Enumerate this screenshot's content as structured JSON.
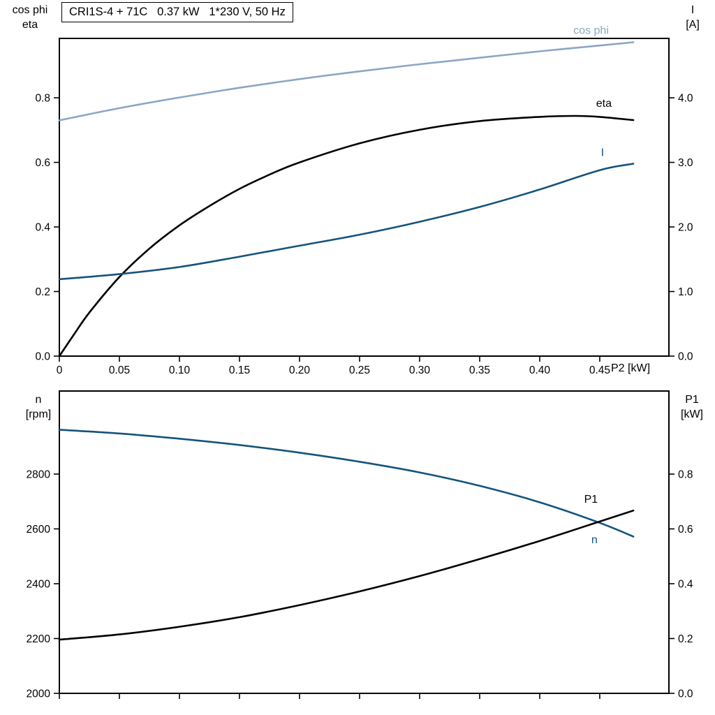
{
  "page": {
    "background": "#ffffff"
  },
  "header": {
    "title_box": "CRI1S-4 + 71C   0.37 kW   1*230 V, 50 Hz"
  },
  "colors": {
    "axis": "#000000",
    "cos_phi": "#8ba6c5",
    "current": "#14537d",
    "eta": "#000000",
    "speed": "#14537d",
    "p1": "#000000"
  },
  "chart_data": [
    {
      "type": "line",
      "id": "motor-efficiency-chart",
      "x_axis": {
        "label": "P2 [kW]",
        "range": [
          0,
          0.5076
        ],
        "tick_values": [
          0,
          0.05,
          0.1,
          0.15,
          0.2,
          0.25,
          0.3,
          0.35,
          0.4,
          0.45
        ],
        "tick_labels": [
          "0",
          "0.05",
          "0.10",
          "0.15",
          "0.20",
          "0.25",
          "0.30",
          "0.35",
          "0.40",
          "0.45"
        ],
        "show_tick_labels": true
      },
      "left_axis": {
        "title_lines": [
          "cos phi",
          "eta"
        ],
        "range": [
          0,
          0.984
        ],
        "tick_values": [
          0,
          0.2,
          0.4,
          0.6,
          0.8
        ],
        "tick_labels": [
          "0.0",
          "0.2",
          "0.4",
          "0.6",
          "0.8"
        ]
      },
      "right_axis": {
        "title_lines": [
          "I",
          "[A]"
        ],
        "range": [
          0,
          4.92
        ],
        "tick_values": [
          0,
          1,
          2,
          3,
          4
        ],
        "tick_labels": [
          "0.0",
          "1.0",
          "2.0",
          "3.0",
          "4.0"
        ]
      },
      "legend_position": "end-of-line-labels",
      "grid": false,
      "series": [
        {
          "name": "cos phi",
          "axis": "left",
          "color": "#8ba6c5",
          "label": {
            "text": "cos phi",
            "x": 0.428,
            "y": 0.998,
            "anchor": "start"
          },
          "points": [
            [
              0,
              0.73
            ],
            [
              0.05,
              0.768
            ],
            [
              0.1,
              0.801
            ],
            [
              0.15,
              0.831
            ],
            [
              0.2,
              0.858
            ],
            [
              0.25,
              0.882
            ],
            [
              0.3,
              0.904
            ],
            [
              0.35,
              0.924
            ],
            [
              0.4,
              0.944
            ],
            [
              0.45,
              0.962
            ],
            [
              0.478,
              0.972
            ]
          ]
        },
        {
          "name": "eta",
          "axis": "left",
          "color": "#000000",
          "label": {
            "text": "eta",
            "x": 0.447,
            "y": 0.772,
            "anchor": "start"
          },
          "points": [
            [
              0,
              0
            ],
            [
              0.012,
              0.066
            ],
            [
              0.025,
              0.135
            ],
            [
              0.05,
              0.245
            ],
            [
              0.075,
              0.333
            ],
            [
              0.1,
              0.405
            ],
            [
              0.125,
              0.465
            ],
            [
              0.15,
              0.518
            ],
            [
              0.175,
              0.562
            ],
            [
              0.2,
              0.6
            ],
            [
              0.25,
              0.659
            ],
            [
              0.3,
              0.701
            ],
            [
              0.35,
              0.728
            ],
            [
              0.4,
              0.741
            ],
            [
              0.43,
              0.744
            ],
            [
              0.45,
              0.741
            ],
            [
              0.478,
              0.731
            ]
          ]
        },
        {
          "name": "I",
          "axis": "right",
          "color": "#14537d",
          "label": {
            "text": "I",
            "x": 0.451,
            "y": 3.1,
            "anchor": "start"
          },
          "points": [
            [
              0,
              1.19
            ],
            [
              0.05,
              1.27
            ],
            [
              0.1,
              1.38
            ],
            [
              0.15,
              1.54
            ],
            [
              0.2,
              1.71
            ],
            [
              0.25,
              1.88
            ],
            [
              0.3,
              2.08
            ],
            [
              0.35,
              2.31
            ],
            [
              0.4,
              2.58
            ],
            [
              0.45,
              2.88
            ],
            [
              0.478,
              2.98
            ]
          ]
        }
      ]
    },
    {
      "type": "line",
      "id": "motor-speed-power-chart",
      "x_axis": {
        "label": "",
        "range": [
          0,
          0.5076
        ],
        "tick_values": [
          0,
          0.05,
          0.1,
          0.15,
          0.2,
          0.25,
          0.3,
          0.35,
          0.4,
          0.45
        ],
        "tick_labels": [],
        "show_tick_labels": false
      },
      "left_axis": {
        "title_lines": [
          "n",
          "[rpm]"
        ],
        "range": [
          2000,
          3103
        ],
        "tick_values": [
          2000,
          2200,
          2400,
          2600,
          2800
        ],
        "tick_labels": [
          "2000",
          "2200",
          "2400",
          "2600",
          "2800"
        ]
      },
      "right_axis": {
        "title_lines": [
          "P1",
          "[kW]"
        ],
        "range": [
          0,
          1.103
        ],
        "tick_values": [
          0,
          0.2,
          0.4,
          0.6,
          0.8
        ],
        "tick_labels": [
          "0.0",
          "0.2",
          "0.4",
          "0.6",
          "0.8"
        ]
      },
      "legend_position": "end-of-line-labels",
      "grid": false,
      "series": [
        {
          "name": "n",
          "axis": "left",
          "color": "#14537d",
          "label": {
            "text": "n",
            "x": 0.443,
            "y": 2548,
            "anchor": "start"
          },
          "points": [
            [
              0,
              2962
            ],
            [
              0.05,
              2948
            ],
            [
              0.1,
              2929
            ],
            [
              0.15,
              2906
            ],
            [
              0.2,
              2878
            ],
            [
              0.25,
              2845
            ],
            [
              0.3,
              2806
            ],
            [
              0.35,
              2757
            ],
            [
              0.4,
              2697
            ],
            [
              0.45,
              2622
            ],
            [
              0.478,
              2572
            ]
          ]
        },
        {
          "name": "P1",
          "axis": "right",
          "color": "#000000",
          "label": {
            "text": "P1",
            "x": 0.437,
            "y": 0.695,
            "anchor": "start"
          },
          "points": [
            [
              0,
              0.196
            ],
            [
              0.05,
              0.215
            ],
            [
              0.1,
              0.243
            ],
            [
              0.15,
              0.278
            ],
            [
              0.2,
              0.322
            ],
            [
              0.25,
              0.372
            ],
            [
              0.3,
              0.428
            ],
            [
              0.35,
              0.49
            ],
            [
              0.4,
              0.556
            ],
            [
              0.45,
              0.627
            ],
            [
              0.478,
              0.667
            ]
          ]
        }
      ]
    }
  ]
}
